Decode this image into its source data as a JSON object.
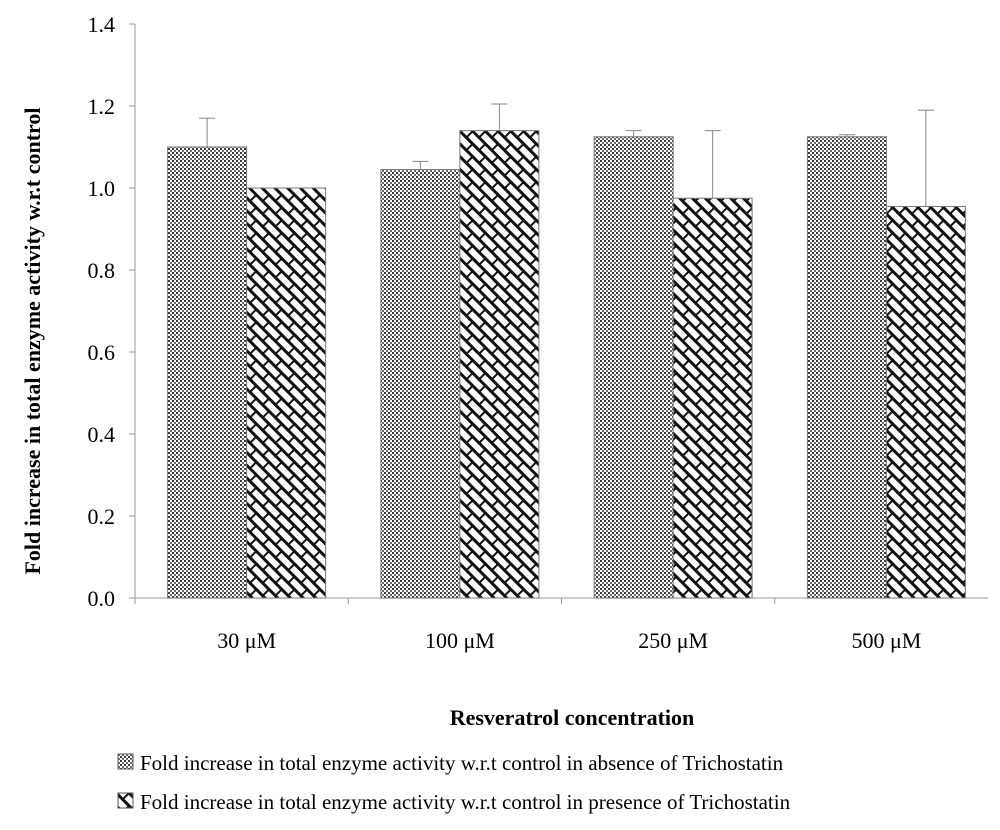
{
  "chart_data": {
    "type": "bar",
    "title": "",
    "xlabel": "Resveratrol concentration",
    "ylabel": "Fold increase in total enzyme activity w.r.t control",
    "categories": [
      "30 μM",
      "100 μM",
      "250 μM",
      "500 μM"
    ],
    "ylim": [
      0,
      1.4
    ],
    "yticks": [
      "0.0",
      "0.2",
      "0.4",
      "0.6",
      "0.8",
      "1.0",
      "1.2",
      "1.4"
    ],
    "grid": false,
    "legend_position": "bottom",
    "series": [
      {
        "name": "Fold increase in total enzyme activity w.r.t control in absence of Trichostatin",
        "pattern": "dots",
        "values": [
          1.1,
          1.045,
          1.125,
          1.125
        ],
        "errors": [
          0.07,
          0.02,
          0.015,
          0.005
        ]
      },
      {
        "name": "Fold increase in total enzyme activity w.r.t control in presence of Trichostatin",
        "pattern": "diagonal-brick",
        "values": [
          1.0,
          1.14,
          0.975,
          0.955
        ],
        "errors": [
          0.0,
          0.065,
          0.165,
          0.235
        ]
      }
    ]
  }
}
